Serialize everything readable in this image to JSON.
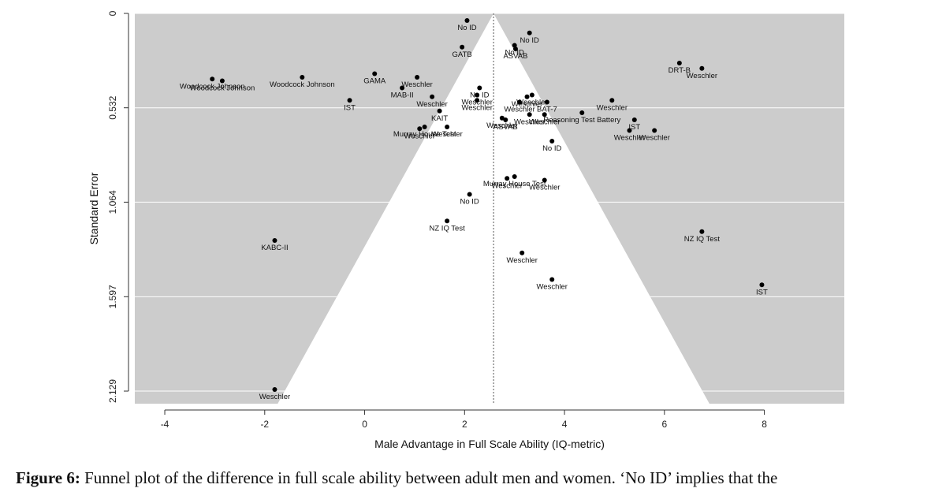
{
  "chart_data": {
    "type": "scatter",
    "subtype": "funnel",
    "xlabel": "Male Advantage in Full Scale Ability (IQ-metric)",
    "ylabel": "Standard Error",
    "xlim": [
      -4.6,
      9.6
    ],
    "ylim": [
      0,
      2.2
    ],
    "y_reversed": true,
    "x_ticks": [
      "-4",
      "-2",
      "0",
      "2",
      "4",
      "6",
      "8"
    ],
    "x_tick_values": [
      -4,
      -2,
      0,
      2,
      4,
      6,
      8
    ],
    "y_ticks": [
      "0",
      "0.532",
      "1.064",
      "1.597",
      "2.129"
    ],
    "y_tick_values": [
      0,
      0.532,
      1.064,
      1.597,
      2.129
    ],
    "funnel_center": 2.58,
    "funnel_base_at_se": 2.2,
    "funnel_base_x": [
      -1.74,
      6.9
    ],
    "background": "#cccccc",
    "grid": "horizontal",
    "points": [
      {
        "x": 2.05,
        "se": 0.04,
        "label": "No ID"
      },
      {
        "x": 3.3,
        "se": 0.11,
        "label": "No ID"
      },
      {
        "x": 1.95,
        "se": 0.19,
        "label": "GATB"
      },
      {
        "x": 3.0,
        "se": 0.18,
        "label": "No ID"
      },
      {
        "x": 3.02,
        "se": 0.2,
        "label": "ASVAB"
      },
      {
        "x": 6.3,
        "se": 0.28,
        "label": "DRT-B"
      },
      {
        "x": 6.75,
        "se": 0.31,
        "label": "Weschler"
      },
      {
        "x": -3.05,
        "se": 0.37,
        "label": "Woodcock Johnson"
      },
      {
        "x": -2.85,
        "se": 0.38,
        "label": "Woodcock Johnson"
      },
      {
        "x": -1.25,
        "se": 0.36,
        "label": "Woodcock Johnson"
      },
      {
        "x": 0.2,
        "se": 0.34,
        "label": "GAMA"
      },
      {
        "x": 1.05,
        "se": 0.36,
        "label": "Weschler"
      },
      {
        "x": 0.75,
        "se": 0.42,
        "label": "MAB-II"
      },
      {
        "x": -0.3,
        "se": 0.49,
        "label": "IST"
      },
      {
        "x": 1.35,
        "se": 0.47,
        "label": "Weschler"
      },
      {
        "x": 2.3,
        "se": 0.42,
        "label": "No ID"
      },
      {
        "x": 2.25,
        "se": 0.46,
        "label": "Weschler"
      },
      {
        "x": 2.25,
        "se": 0.49,
        "label": "Weschler"
      },
      {
        "x": 3.35,
        "se": 0.46,
        "label": "Weschler"
      },
      {
        "x": 3.25,
        "se": 0.47,
        "label": "Weschler"
      },
      {
        "x": 3.65,
        "se": 0.5,
        "label": "BAT-7"
      },
      {
        "x": 3.1,
        "se": 0.5,
        "label": "Weschler"
      },
      {
        "x": 4.95,
        "se": 0.49,
        "label": "Weschler"
      },
      {
        "x": 1.5,
        "se": 0.55,
        "label": "KAIT"
      },
      {
        "x": 4.35,
        "se": 0.56,
        "label": "Reasoning Test Battery"
      },
      {
        "x": 2.75,
        "se": 0.59,
        "label": "Weschler"
      },
      {
        "x": 2.82,
        "se": 0.6,
        "label": "ASVAB"
      },
      {
        "x": 3.3,
        "se": 0.57,
        "label": "Weschler"
      },
      {
        "x": 3.6,
        "se": 0.57,
        "label": "Weschler"
      },
      {
        "x": 5.4,
        "se": 0.6,
        "label": "IST"
      },
      {
        "x": 5.3,
        "se": 0.66,
        "label": "Weschler"
      },
      {
        "x": 5.8,
        "se": 0.66,
        "label": "Weschler"
      },
      {
        "x": 1.1,
        "se": 0.65,
        "label": "Weschler"
      },
      {
        "x": 1.2,
        "se": 0.64,
        "label": "Murray House Test"
      },
      {
        "x": 1.65,
        "se": 0.64,
        "label": "Weschler"
      },
      {
        "x": 3.75,
        "se": 0.72,
        "label": "No ID"
      },
      {
        "x": 2.85,
        "se": 0.93,
        "label": "Weschler"
      },
      {
        "x": 3.0,
        "se": 0.92,
        "label": "Murray House Test"
      },
      {
        "x": 3.6,
        "se": 0.94,
        "label": "Weschler"
      },
      {
        "x": 2.1,
        "se": 1.02,
        "label": "No ID"
      },
      {
        "x": 1.65,
        "se": 1.17,
        "label": "NZ IQ Test"
      },
      {
        "x": 6.75,
        "se": 1.23,
        "label": "NZ IQ Test"
      },
      {
        "x": -1.8,
        "se": 1.28,
        "label": "KABC-II"
      },
      {
        "x": 3.15,
        "se": 1.35,
        "label": "Weschler"
      },
      {
        "x": 3.75,
        "se": 1.5,
        "label": "Weschler"
      },
      {
        "x": 7.95,
        "se": 1.53,
        "label": "IST"
      },
      {
        "x": -1.8,
        "se": 2.12,
        "label": "Weschler"
      }
    ]
  },
  "caption": {
    "figure_label": "Figure 6:",
    "text": "Funnel plot of the difference in full scale ability between adult men and women. ‘No ID’ implies that the"
  }
}
